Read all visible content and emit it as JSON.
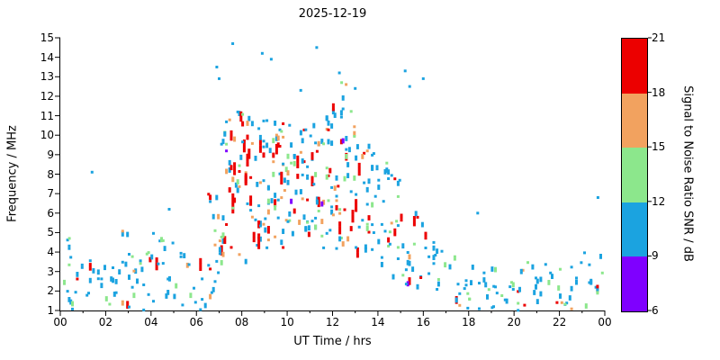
{
  "chart_data": {
    "type": "scatter",
    "title": "2025-12-19",
    "xlabel": "UT Time / hrs",
    "ylabel": "Frequency / MHz",
    "xlim": [
      0,
      24
    ],
    "ylim": [
      1,
      15
    ],
    "grid": false,
    "x_ticks": {
      "values": [
        0,
        2,
        4,
        6,
        8,
        10,
        12,
        14,
        16,
        18,
        20,
        22,
        24
      ],
      "labels": [
        "00",
        "02",
        "04",
        "06",
        "08",
        "10",
        "12",
        "14",
        "16",
        "18",
        "20",
        "22",
        "00"
      ]
    },
    "y_ticks": [
      1,
      2,
      3,
      4,
      5,
      6,
      7,
      8,
      9,
      10,
      11,
      12,
      13,
      14,
      15
    ],
    "colorbar": {
      "label": "Signal to Noise Ratio SNR / dB",
      "ticks": [
        6,
        9,
        12,
        15,
        18,
        21
      ],
      "segments": [
        {
          "from": 6,
          "to": 9,
          "color": "#7F00FF",
          "name": "purple"
        },
        {
          "from": 9,
          "to": 12,
          "color": "#1BA3E0",
          "name": "blue"
        },
        {
          "from": 12,
          "to": 15,
          "color": "#8CE78C",
          "name": "green"
        },
        {
          "from": 15,
          "to": 18,
          "color": "#F2A25F",
          "name": "orange"
        },
        {
          "from": 18,
          "to": 21,
          "color": "#EC0000",
          "name": "red"
        }
      ]
    },
    "density_bins": [
      [
        0.25,
        1,
        4.7,
        12,
        0.08
      ],
      [
        0.75,
        1,
        3.6,
        9,
        0.05
      ],
      [
        1.25,
        1,
        4.0,
        10,
        0.08
      ],
      [
        1.75,
        1,
        3.4,
        8,
        0.05
      ],
      [
        2.25,
        1,
        4.6,
        13,
        0.15
      ],
      [
        2.75,
        1,
        5.2,
        15,
        0.18
      ],
      [
        3.25,
        1,
        4.6,
        13,
        0.12
      ],
      [
        3.75,
        1,
        4.4,
        11,
        0.08
      ],
      [
        4.25,
        1,
        5.0,
        13,
        0.12
      ],
      [
        4.75,
        1,
        4.6,
        12,
        0.18
      ],
      [
        5.25,
        1,
        4.0,
        9,
        0.08
      ],
      [
        5.75,
        1,
        3.4,
        7,
        0.05
      ],
      [
        6.25,
        1,
        4.2,
        10,
        0.15
      ],
      [
        6.75,
        1,
        7.0,
        22,
        0.3
      ],
      [
        7.25,
        2,
        10.8,
        42,
        0.45
      ],
      [
        7.75,
        2.6,
        11.4,
        46,
        0.5
      ],
      [
        8.25,
        3.2,
        11.5,
        46,
        0.5
      ],
      [
        8.75,
        4,
        11.2,
        42,
        0.45
      ],
      [
        9.25,
        4,
        11.0,
        40,
        0.4
      ],
      [
        9.75,
        4.2,
        10.6,
        38,
        0.35
      ],
      [
        10.25,
        4.5,
        10.6,
        34,
        0.33
      ],
      [
        10.75,
        4.5,
        10.4,
        32,
        0.3
      ],
      [
        11.25,
        4.5,
        11.0,
        34,
        0.35
      ],
      [
        11.75,
        4.2,
        11.5,
        38,
        0.4
      ],
      [
        12.25,
        4,
        12.1,
        40,
        0.45
      ],
      [
        12.75,
        4,
        11.5,
        34,
        0.4
      ],
      [
        13.25,
        3.6,
        10.0,
        30,
        0.35
      ],
      [
        13.75,
        3.2,
        9.6,
        28,
        0.3
      ],
      [
        14.25,
        3,
        8.6,
        22,
        0.2
      ],
      [
        14.75,
        2.6,
        8.0,
        18,
        0.18
      ],
      [
        15.25,
        2.2,
        7.6,
        20,
        0.28
      ],
      [
        15.75,
        2,
        7.0,
        16,
        0.22
      ],
      [
        16.25,
        1.6,
        5.0,
        12,
        0.1
      ],
      [
        16.75,
        1.5,
        4.6,
        10,
        0.08
      ],
      [
        17.25,
        1.2,
        4.0,
        9,
        0.06
      ],
      [
        17.75,
        1,
        3.6,
        8,
        0.06
      ],
      [
        18.25,
        1,
        3.5,
        8,
        0.08
      ],
      [
        18.75,
        1,
        3.2,
        8,
        0.06
      ],
      [
        19.25,
        1,
        3.5,
        9,
        0.08
      ],
      [
        19.75,
        1,
        3.2,
        8,
        0.06
      ],
      [
        20.25,
        1,
        3.5,
        9,
        0.08
      ],
      [
        20.75,
        1,
        3.5,
        9,
        0.08
      ],
      [
        21.25,
        1,
        3.5,
        9,
        0.08
      ],
      [
        21.75,
        1,
        3.4,
        8,
        0.08
      ],
      [
        22.25,
        1,
        3.5,
        9,
        0.08
      ],
      [
        22.75,
        1,
        3.5,
        8,
        0.08
      ],
      [
        23.25,
        1,
        4.0,
        9,
        0.08
      ],
      [
        23.75,
        1,
        4.2,
        10,
        0.08
      ]
    ],
    "sporadic_points": [
      [
        0.4,
        4.7,
        13
      ],
      [
        1.4,
        8.1,
        10
      ],
      [
        4.8,
        6.2,
        10
      ],
      [
        6.9,
        13.5,
        10
      ],
      [
        7.0,
        12.9,
        10
      ],
      [
        7.6,
        14.7,
        10
      ],
      [
        8.9,
        14.2,
        10
      ],
      [
        9.3,
        13.9,
        10
      ],
      [
        10.6,
        12.3,
        10
      ],
      [
        11.3,
        14.5,
        10
      ],
      [
        12.3,
        13.2,
        10
      ],
      [
        12.4,
        12.7,
        13
      ],
      [
        12.6,
        12.6,
        16
      ],
      [
        13.0,
        12.4,
        10
      ],
      [
        15.2,
        13.3,
        10
      ],
      [
        15.4,
        12.5,
        10
      ],
      [
        16.0,
        12.9,
        10
      ],
      [
        18.4,
        6.0,
        10
      ],
      [
        19.1,
        1.2,
        10
      ],
      [
        23.7,
        6.8,
        10
      ]
    ]
  }
}
